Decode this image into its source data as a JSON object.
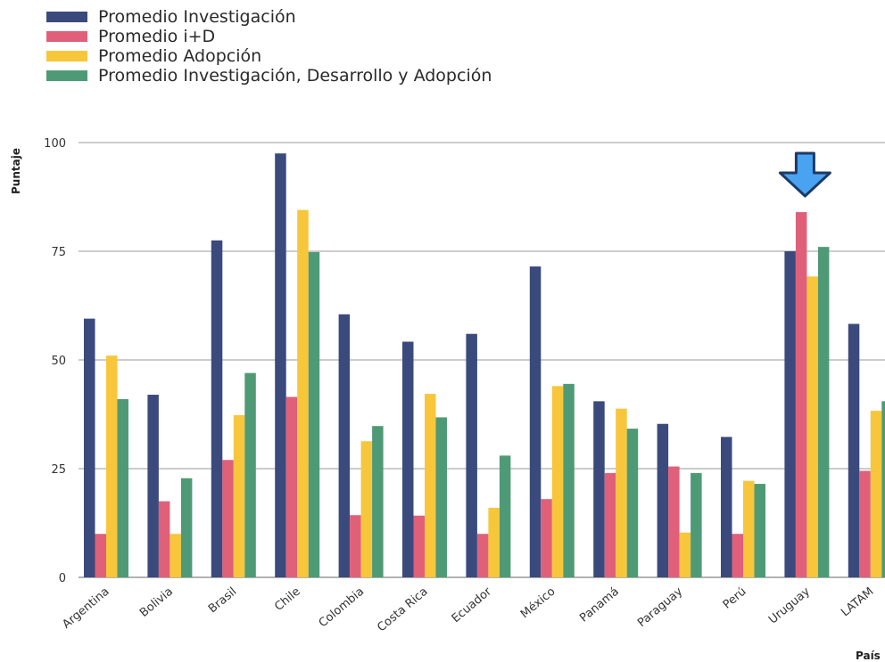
{
  "chart_data": {
    "type": "bar",
    "xlabel": "País",
    "ylabel": "Puntaje",
    "ylim": [
      0,
      100
    ],
    "yticks": [
      0,
      25,
      50,
      75,
      100
    ],
    "grid": true,
    "legend_position": "top-left",
    "categories": [
      "Argentina",
      "Bolivia",
      "Brasil",
      "Chile",
      "Colombia",
      "Costa Rica",
      "Ecuador",
      "México",
      "Panamá",
      "Paraguay",
      "Perú",
      "Uruguay",
      "LATAM"
    ],
    "series": [
      {
        "name": "Promedio Investigación",
        "color": "#3b4a7d",
        "values": [
          59.5,
          42,
          77.5,
          97.5,
          60.5,
          54.2,
          56,
          71.5,
          40.5,
          35.3,
          32.3,
          75,
          58.3
        ]
      },
      {
        "name": "Promedio i+D",
        "color": "#e0607a",
        "values": [
          10,
          17.5,
          27,
          41.5,
          14.3,
          14.2,
          10,
          18,
          24,
          25.5,
          10,
          84,
          24.5
        ]
      },
      {
        "name": "Promedio Adopción",
        "color": "#f7c63b",
        "values": [
          51,
          10,
          37.3,
          84.5,
          31.3,
          42.2,
          16,
          44,
          38.8,
          10.3,
          22.2,
          69.2,
          38.3
        ]
      },
      {
        "name": "Promedio Investigación, Desarrollo y Adopción",
        "color": "#4f9a76",
        "values": [
          41,
          22.8,
          47,
          74.8,
          34.8,
          36.8,
          28,
          44.5,
          34.2,
          24,
          21.5,
          76,
          40.5
        ]
      }
    ],
    "highlight": {
      "category": "Uruguay",
      "marker": "down-arrow-icon",
      "color": "#4aa3f0"
    }
  }
}
